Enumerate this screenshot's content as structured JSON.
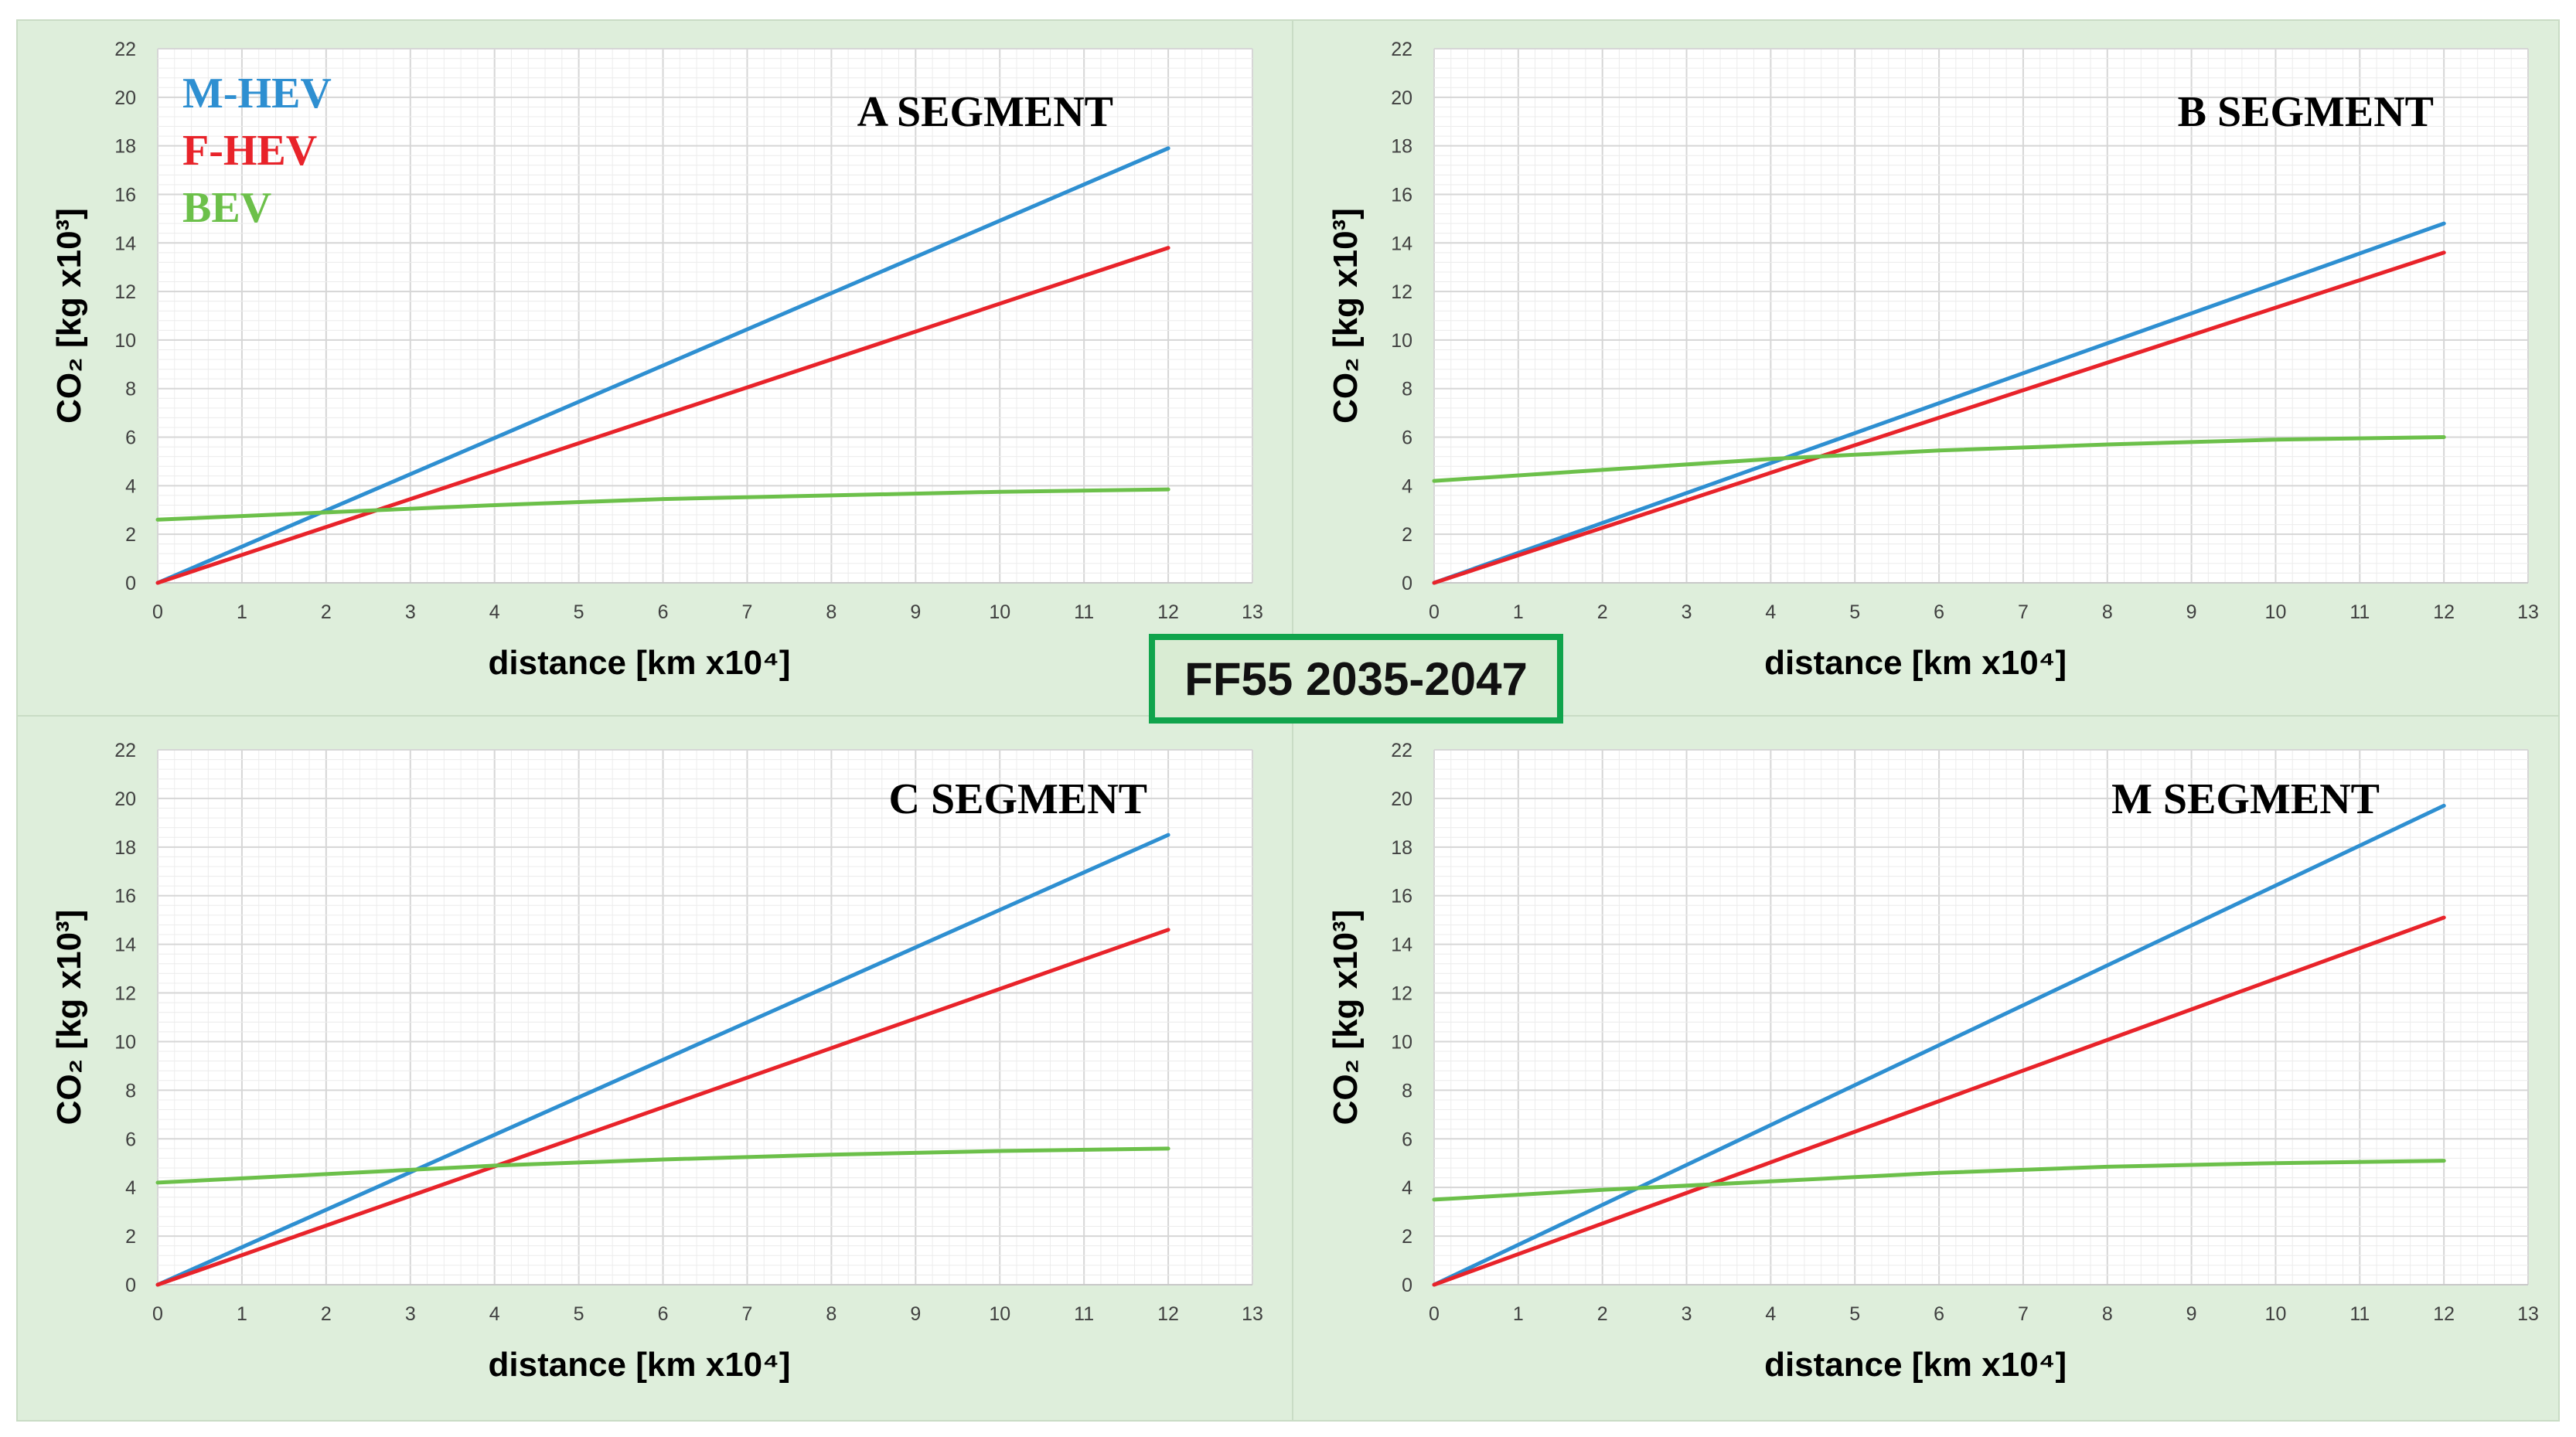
{
  "badge": "FF55 2035-2047",
  "legend": {
    "items": [
      {
        "label": "M-HEV",
        "color": "#2e8fd1"
      },
      {
        "label": "F-HEV",
        "color": "#e8232a"
      },
      {
        "label": "BEV",
        "color": "#6cc04a"
      }
    ]
  },
  "chart_data": [
    {
      "type": "line",
      "title": "A SEGMENT",
      "xlabel": "distance [km x10⁴]",
      "ylabel": "CO₂ [kg x10³]",
      "xlim": [
        0,
        13
      ],
      "ylim": [
        0,
        22
      ],
      "xticks": [
        0,
        1,
        2,
        3,
        4,
        5,
        6,
        7,
        8,
        9,
        10,
        11,
        12,
        13
      ],
      "yticks": [
        0,
        2,
        4,
        6,
        8,
        10,
        12,
        14,
        16,
        18,
        20,
        22
      ],
      "grid": true,
      "legend_position": "top-left",
      "x": [
        0,
        12
      ],
      "series": [
        {
          "name": "M-HEV",
          "color": "#2e8fd1",
          "values": [
            0,
            17.9
          ]
        },
        {
          "name": "F-HEV",
          "color": "#e8232a",
          "values": [
            0,
            13.8
          ]
        },
        {
          "name": "BEV",
          "color": "#6cc04a",
          "x": [
            0,
            2,
            4,
            6,
            8,
            10,
            12
          ],
          "values": [
            2.6,
            2.9,
            3.2,
            3.45,
            3.6,
            3.75,
            3.85
          ]
        }
      ]
    },
    {
      "type": "line",
      "title": "B SEGMENT",
      "xlabel": "distance [km x10⁴]",
      "ylabel": "CO₂ [kg x10³]",
      "xlim": [
        0,
        13
      ],
      "ylim": [
        0,
        22
      ],
      "xticks": [
        0,
        1,
        2,
        3,
        4,
        5,
        6,
        7,
        8,
        9,
        10,
        11,
        12,
        13
      ],
      "yticks": [
        0,
        2,
        4,
        6,
        8,
        10,
        12,
        14,
        16,
        18,
        20,
        22
      ],
      "grid": true,
      "x": [
        0,
        12
      ],
      "series": [
        {
          "name": "M-HEV",
          "color": "#2e8fd1",
          "values": [
            0,
            14.8
          ]
        },
        {
          "name": "F-HEV",
          "color": "#e8232a",
          "values": [
            0,
            13.6
          ]
        },
        {
          "name": "BEV",
          "color": "#6cc04a",
          "x": [
            0,
            2,
            4,
            6,
            8,
            10,
            12
          ],
          "values": [
            4.2,
            4.65,
            5.1,
            5.45,
            5.7,
            5.9,
            6.0
          ]
        }
      ]
    },
    {
      "type": "line",
      "title": "C SEGMENT",
      "xlabel": "distance [km x10⁴]",
      "ylabel": "CO₂ [kg x10³]",
      "xlim": [
        0,
        13
      ],
      "ylim": [
        0,
        22
      ],
      "xticks": [
        0,
        1,
        2,
        3,
        4,
        5,
        6,
        7,
        8,
        9,
        10,
        11,
        12,
        13
      ],
      "yticks": [
        0,
        2,
        4,
        6,
        8,
        10,
        12,
        14,
        16,
        18,
        20,
        22
      ],
      "grid": true,
      "x": [
        0,
        12
      ],
      "series": [
        {
          "name": "M-HEV",
          "color": "#2e8fd1",
          "values": [
            0,
            18.5
          ]
        },
        {
          "name": "F-HEV",
          "color": "#e8232a",
          "values": [
            0,
            14.6
          ]
        },
        {
          "name": "BEV",
          "color": "#6cc04a",
          "x": [
            0,
            2,
            4,
            6,
            8,
            10,
            12
          ],
          "values": [
            4.2,
            4.55,
            4.9,
            5.15,
            5.35,
            5.5,
            5.6
          ]
        }
      ]
    },
    {
      "type": "line",
      "title": "M SEGMENT",
      "xlabel": "distance [km x10⁴]",
      "ylabel": "CO₂ [kg x10³]",
      "xlim": [
        0,
        13
      ],
      "ylim": [
        0,
        22
      ],
      "xticks": [
        0,
        1,
        2,
        3,
        4,
        5,
        6,
        7,
        8,
        9,
        10,
        11,
        12,
        13
      ],
      "yticks": [
        0,
        2,
        4,
        6,
        8,
        10,
        12,
        14,
        16,
        18,
        20,
        22
      ],
      "grid": true,
      "x": [
        0,
        12
      ],
      "series": [
        {
          "name": "M-HEV",
          "color": "#2e8fd1",
          "values": [
            0,
            19.7
          ]
        },
        {
          "name": "F-HEV",
          "color": "#e8232a",
          "values": [
            0,
            15.1
          ]
        },
        {
          "name": "BEV",
          "color": "#6cc04a",
          "x": [
            0,
            2,
            4,
            6,
            8,
            10,
            12
          ],
          "values": [
            3.5,
            3.9,
            4.25,
            4.6,
            4.85,
            5.0,
            5.1
          ]
        }
      ]
    }
  ]
}
